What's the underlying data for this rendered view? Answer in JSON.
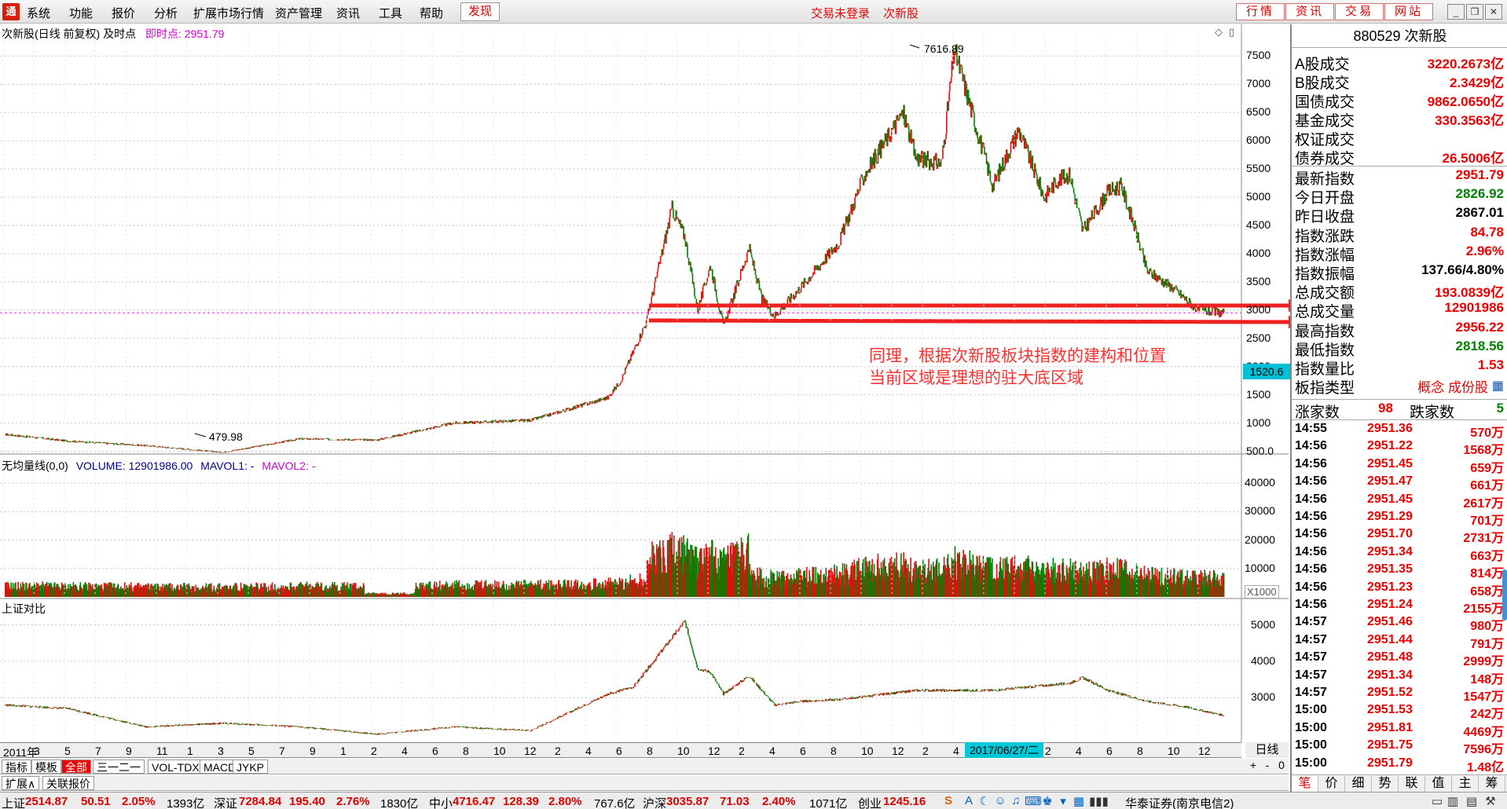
{
  "menu": {
    "items": [
      "系统",
      "功能",
      "报价",
      "分析",
      "扩展市场行情",
      "资产管理",
      "资讯",
      "工具",
      "帮助"
    ],
    "discover": "发现",
    "trade_status": "交易未登录",
    "current_block": "次新股",
    "top_buttons": [
      "行情",
      "资讯",
      "交易",
      "网站"
    ]
  },
  "main_chart": {
    "title": "次新股(日线 前复权) 及时点",
    "instant_label": "即时点:",
    "instant_value": "2951.79",
    "high_label": "7616.89",
    "low_label": "479.98",
    "price_tag": "1520.6",
    "y_ticks": [
      "7500",
      "7000",
      "6500",
      "6000",
      "5500",
      "5000",
      "4500",
      "4000",
      "3500",
      "3000",
      "2500",
      "2000",
      "1500",
      "1000",
      "500.0"
    ],
    "annotation_line1": "同理，根据次新股板块指数的建构和位置",
    "annotation_line2": "当前区域是理想的驻大底区域"
  },
  "volume_chart": {
    "title": "无均量线(0,0)",
    "volume_label": "VOLUME: 12901986.00",
    "mavol1": "MAVOL1: -",
    "mavol2": "MAVOL2: -",
    "y_ticks": [
      "40000",
      "30000",
      "20000",
      "10000"
    ],
    "unit": "X1000"
  },
  "compare_chart": {
    "title": "上证对比",
    "y_ticks": [
      "5000",
      "4000",
      "3000"
    ]
  },
  "x_axis": {
    "ticks": [
      "2011年",
      "3",
      "5",
      "7",
      "9",
      "11",
      "1",
      "3",
      "5",
      "7",
      "9",
      "11",
      "1",
      "3",
      "5",
      "7",
      "9",
      "11",
      "1",
      "3",
      "5",
      "7",
      "9",
      "11",
      "1",
      "3",
      "5",
      "7",
      "9",
      "11",
      "1",
      "3",
      "5",
      "7",
      "9",
      "11",
      "1",
      "3",
      "5",
      "7",
      "9",
      "11"
    ],
    "visible_ticks": [
      "2011年",
      "3",
      "5",
      "7",
      "9",
      "11",
      "1",
      "3",
      "5",
      "7",
      "9",
      "1",
      "2",
      "4",
      "6",
      "8",
      "10",
      "12",
      "2",
      "4",
      "6",
      "8",
      "10",
      "12",
      "2",
      "4",
      "6",
      "8",
      "10",
      "12",
      "2",
      "4",
      "6",
      "12",
      "2",
      "4",
      "6",
      "8",
      "10",
      "12"
    ],
    "cursor_date": "2017/06/27/二",
    "period": "日线"
  },
  "tabs": {
    "row1": [
      "指标",
      "模板",
      "全部",
      "三一二一",
      "VOL-TDX",
      "MACD",
      "JYKP"
    ],
    "row2": [
      "扩展∧",
      "关联报价"
    ],
    "controls": [
      "+",
      "-",
      "0"
    ]
  },
  "statusbar": {
    "sh_label": "上证",
    "sh_value": "2514.87",
    "sh_change": "50.51",
    "sh_pct": "2.05%",
    "sh_amount": "1393亿",
    "sz_label": "深证",
    "sz_value": "7284.84",
    "sz_change": "195.40",
    "sz_pct": "2.76%",
    "sz_amount": "1830亿",
    "zx_label": "中小",
    "zx_value": "4716.47",
    "zx_change": "128.39",
    "zx_pct": "2.80%",
    "zx_amount": "767.6亿",
    "hs_label": "沪深",
    "hs_value": "3035.87",
    "hs_change": "71.03",
    "hs_pct": "2.40%",
    "hs_amount": "1071亿",
    "cy_label": "创业",
    "cy_value": "1245.16",
    "broker": "华泰证券(南京电信2)"
  },
  "right_panel": {
    "title": "880529 次新股",
    "stats": [
      {
        "label": "A股成交",
        "value": "3220.2673亿",
        "color": "red"
      },
      {
        "label": "B股成交",
        "value": "2.3429亿",
        "color": "red"
      },
      {
        "label": "国债成交",
        "value": "9862.0650亿",
        "color": "red"
      },
      {
        "label": "基金成交",
        "value": "330.3563亿",
        "color": "red"
      },
      {
        "label": "权证成交",
        "value": "",
        "color": "red"
      },
      {
        "label": "债券成交",
        "value": "26.5006亿",
        "color": "red"
      }
    ],
    "index": [
      {
        "label": "最新指数",
        "value": "2951.79",
        "color": "red"
      },
      {
        "label": "今日开盘",
        "value": "2826.92",
        "color": "green"
      },
      {
        "label": "昨日收盘",
        "value": "2867.01",
        "color": "black"
      },
      {
        "label": "指数涨跌",
        "value": "84.78",
        "color": "red"
      },
      {
        "label": "指数涨幅",
        "value": "2.96%",
        "color": "red"
      },
      {
        "label": "指数振幅",
        "value": "137.66/4.80%",
        "color": "black"
      },
      {
        "label": "总成交额",
        "value": "193.0839亿",
        "color": "red"
      },
      {
        "label": "总成交量",
        "value": "12901986",
        "color": "red"
      },
      {
        "label": "最高指数",
        "value": "2956.22",
        "color": "red"
      },
      {
        "label": "最低指数",
        "value": "2818.56",
        "color": "green"
      },
      {
        "label": "指数量比",
        "value": "1.53",
        "color": "red"
      },
      {
        "label": "板指类型",
        "value": "概念 成份股",
        "color": "red"
      }
    ],
    "up_label": "涨家数",
    "up_count": "98",
    "down_label": "跌家数",
    "down_count": "5",
    "ticks": [
      {
        "time": "14:55",
        "price": "2951.36",
        "vol": "570万"
      },
      {
        "time": "14:56",
        "price": "2951.22",
        "vol": "1568万"
      },
      {
        "time": "14:56",
        "price": "2951.45",
        "vol": "659万"
      },
      {
        "time": "14:56",
        "price": "2951.47",
        "vol": "661万"
      },
      {
        "time": "14:56",
        "price": "2951.45",
        "vol": "2617万"
      },
      {
        "time": "14:56",
        "price": "2951.29",
        "vol": "701万"
      },
      {
        "time": "14:56",
        "price": "2951.70",
        "vol": "2731万"
      },
      {
        "time": "14:56",
        "price": "2951.34",
        "vol": "663万"
      },
      {
        "time": "14:56",
        "price": "2951.35",
        "vol": "814万"
      },
      {
        "time": "14:56",
        "price": "2951.23",
        "vol": "658万"
      },
      {
        "time": "14:56",
        "price": "2951.24",
        "vol": "2155万"
      },
      {
        "time": "14:57",
        "price": "2951.46",
        "vol": "980万"
      },
      {
        "time": "14:57",
        "price": "2951.44",
        "vol": "791万"
      },
      {
        "time": "14:57",
        "price": "2951.48",
        "vol": "2999万"
      },
      {
        "time": "14:57",
        "price": "2951.34",
        "vol": "148万"
      },
      {
        "time": "14:57",
        "price": "2951.52",
        "vol": "1547万"
      },
      {
        "time": "15:00",
        "price": "2951.53",
        "vol": "242万"
      },
      {
        "time": "15:00",
        "price": "2951.81",
        "vol": "4469万"
      },
      {
        "time": "15:00",
        "price": "2951.75",
        "vol": "7596万"
      },
      {
        "time": "15:00",
        "price": "2951.79",
        "vol": "1.48亿"
      }
    ],
    "bottom_tabs": [
      "笔",
      "价",
      "细",
      "势",
      "联",
      "值",
      "主",
      "筹"
    ]
  },
  "chart_data": {
    "type": "line",
    "series": [
      {
        "name": "次新股",
        "x": [
          "2011-01",
          "2011-06",
          "2011-12",
          "2012-06",
          "2012-12",
          "2013-06",
          "2013-12",
          "2014-06",
          "2014-12",
          "2015-01",
          "2015-03",
          "2015-05",
          "2015-06",
          "2015-07",
          "2015-08",
          "2015-09",
          "2015-11",
          "2015-12",
          "2016-01",
          "2016-03",
          "2016-06",
          "2016-08",
          "2016-11",
          "2016-12",
          "2017-02",
          "2017-03",
          "2017-05",
          "2017-06",
          "2017-08",
          "2017-10",
          "2017-11",
          "2017-12",
          "2018-01",
          "2018-03",
          "2018-04",
          "2018-05",
          "2018-06",
          "2018-08",
          "2018-10",
          "2018-12"
        ],
        "values": [
          800,
          680,
          600,
          480,
          720,
          700,
          1000,
          1050,
          1450,
          1750,
          2800,
          4800,
          4300,
          3000,
          3800,
          2700,
          4100,
          3200,
          2900,
          3400,
          4200,
          5400,
          6500,
          5700,
          5600,
          7616,
          6000,
          5200,
          6200,
          5000,
          5300,
          5400,
          4400,
          5100,
          5200,
          4500,
          3700,
          3400,
          3000,
          2951
        ]
      },
      {
        "name": "上证对比",
        "x": [
          "2011-01",
          "2011-06",
          "2011-12",
          "2012-06",
          "2012-12",
          "2013-06",
          "2013-12",
          "2014-06",
          "2014-12",
          "2015-02",
          "2015-04",
          "2015-06",
          "2015-07",
          "2015-08",
          "2015-09",
          "2015-11",
          "2016-01",
          "2016-03",
          "2016-06",
          "2016-12",
          "2017-06",
          "2017-12",
          "2018-01",
          "2018-03",
          "2018-06",
          "2018-09",
          "2018-12"
        ],
        "values": [
          2800,
          2700,
          2200,
          2300,
          2200,
          2000,
          2200,
          2100,
          3100,
          3300,
          4200,
          5100,
          3800,
          3700,
          3100,
          3600,
          2800,
          2900,
          2950,
          3200,
          3200,
          3400,
          3550,
          3200,
          2900,
          2750,
          2514
        ]
      }
    ],
    "ylim": [
      480,
      7700
    ],
    "grid": true
  }
}
